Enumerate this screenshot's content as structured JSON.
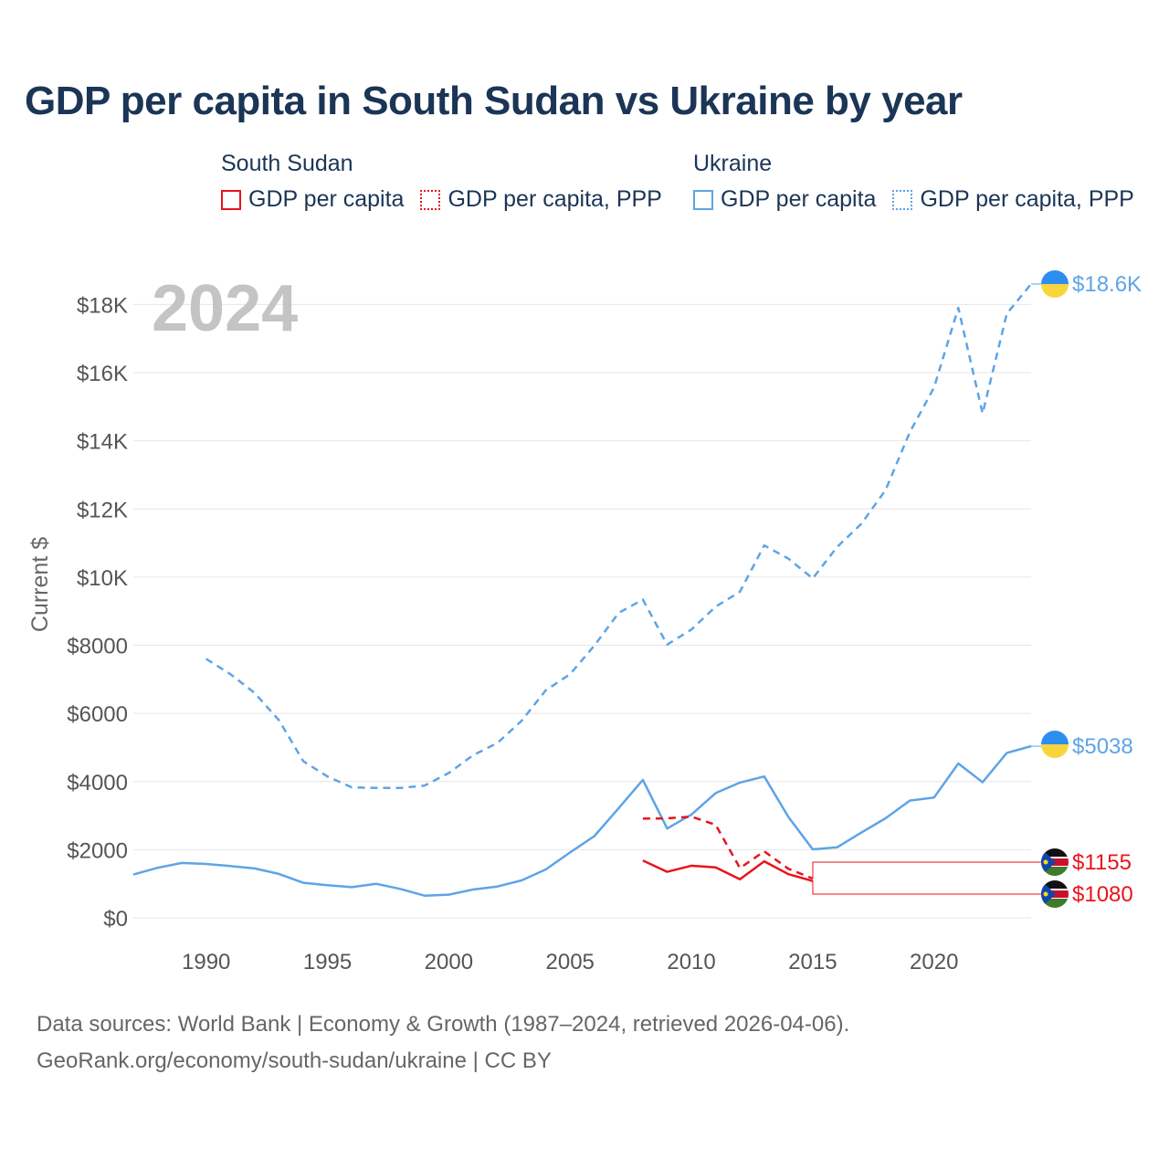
{
  "title": "GDP per capita in South Sudan vs Ukraine by year",
  "legend": {
    "groups": [
      {
        "country": "South Sudan",
        "color": "#e8141b",
        "items": [
          {
            "label": "GDP per capita",
            "style": "solid"
          },
          {
            "label": "GDP per capita, PPP",
            "style": "dotted"
          }
        ]
      },
      {
        "country": "Ukraine",
        "color": "#5ea4e6",
        "items": [
          {
            "label": "GDP per capita",
            "style": "solid"
          },
          {
            "label": "GDP per capita, PPP",
            "style": "dotted"
          }
        ]
      }
    ]
  },
  "year_label": "2024",
  "footer": {
    "line1": "Data sources: World Bank | Economy & Growth (1987–2024, retrieved 2026-04-06).",
    "line2": "GeoRank.org/economy/south-sudan/ukraine | CC BY"
  },
  "colors": {
    "south_sudan": "#e8141b",
    "ukraine": "#5ea4e6",
    "grid": "#e6e6e6",
    "axis_text": "#555555",
    "year": "#c4c4c4"
  },
  "chart_data": {
    "type": "line",
    "title": "GDP per capita in South Sudan vs Ukraine by year",
    "xlabel": "",
    "ylabel": "Current $",
    "xlim": [
      1987,
      2024
    ],
    "ylim": [
      0,
      18600
    ],
    "x_ticks": [
      1990,
      1995,
      2000,
      2005,
      2010,
      2015,
      2020
    ],
    "y_ticks": [
      {
        "value": 0,
        "label": "$0"
      },
      {
        "value": 2000,
        "label": "$2000"
      },
      {
        "value": 4000,
        "label": "$4000"
      },
      {
        "value": 6000,
        "label": "$6000"
      },
      {
        "value": 8000,
        "label": "$8000"
      },
      {
        "value": 10000,
        "label": "$10K"
      },
      {
        "value": 12000,
        "label": "$12K"
      },
      {
        "value": 14000,
        "label": "$14K"
      },
      {
        "value": 16000,
        "label": "$16K"
      },
      {
        "value": 18000,
        "label": "$18K"
      }
    ],
    "grid": true,
    "series": [
      {
        "name": "Ukraine GDP per capita, PPP",
        "country": "Ukraine",
        "style": "dashed",
        "x": [
          1990,
          1991,
          1992,
          1993,
          1994,
          1995,
          1996,
          1997,
          1998,
          1999,
          2000,
          2001,
          2002,
          2003,
          2004,
          2005,
          2006,
          2007,
          2008,
          2009,
          2010,
          2011,
          2012,
          2013,
          2014,
          2015,
          2016,
          2017,
          2018,
          2019,
          2020,
          2021,
          2022,
          2023,
          2024
        ],
        "values": [
          7600,
          7150,
          6600,
          5800,
          4600,
          4150,
          3830,
          3810,
          3810,
          3880,
          4250,
          4770,
          5130,
          5780,
          6680,
          7150,
          7990,
          8950,
          9340,
          8020,
          8460,
          9130,
          9570,
          10930,
          10540,
          9960,
          10880,
          11560,
          12550,
          14250,
          15560,
          17900,
          14800,
          17730,
          18600
        ],
        "end_label": "$18.6K"
      },
      {
        "name": "Ukraine GDP per capita",
        "country": "Ukraine",
        "style": "solid",
        "x": [
          1987,
          1988,
          1989,
          1990,
          1991,
          1992,
          1993,
          1994,
          1995,
          1996,
          1997,
          1998,
          1999,
          2000,
          2001,
          2002,
          2003,
          2004,
          2005,
          2006,
          2007,
          2008,
          2009,
          2010,
          2011,
          2012,
          2013,
          2014,
          2015,
          2016,
          2017,
          2018,
          2019,
          2020,
          2021,
          2022,
          2023,
          2024
        ],
        "values": [
          1270,
          1470,
          1610,
          1580,
          1520,
          1450,
          1290,
          1030,
          960,
          900,
          1000,
          850,
          650,
          680,
          830,
          920,
          1100,
          1420,
          1920,
          2400,
          3220,
          4050,
          2620,
          3030,
          3660,
          3970,
          4150,
          2960,
          2010,
          2070,
          2500,
          2920,
          3440,
          3530,
          4530,
          3980,
          4840,
          5038
        ],
        "end_label": "$5038"
      },
      {
        "name": "South Sudan GDP per capita, PPP",
        "country": "South Sudan",
        "style": "dashed",
        "x": [
          2008,
          2009,
          2010,
          2011,
          2012,
          2013,
          2014,
          2015
        ],
        "values": [
          2910,
          2920,
          2970,
          2730,
          1460,
          1950,
          1440,
          1155
        ],
        "end_label": "$1155"
      },
      {
        "name": "South Sudan GDP per capita",
        "country": "South Sudan",
        "style": "solid",
        "x": [
          2008,
          2009,
          2010,
          2011,
          2012,
          2013,
          2014,
          2015
        ],
        "values": [
          1680,
          1350,
          1530,
          1480,
          1130,
          1660,
          1280,
          1080
        ],
        "end_label": "$1080"
      }
    ]
  }
}
